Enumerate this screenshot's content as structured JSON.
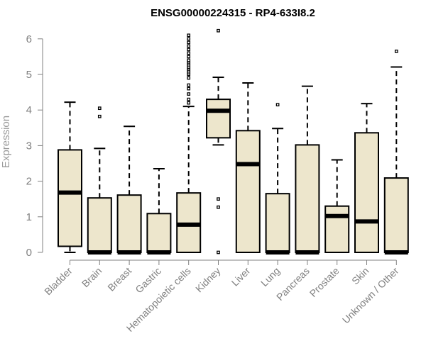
{
  "chart_data": {
    "type": "boxplot",
    "title": "ENSG00000224315 - RP4-633I8.2",
    "xlabel": "",
    "ylabel": "Expression",
    "ylim": [
      0,
      6
    ],
    "yticks": [
      0,
      1,
      2,
      3,
      4,
      5,
      6
    ],
    "grid": false,
    "colors": {
      "box_fill": "#ede6cc",
      "stroke": "#000000",
      "axis": "#808080",
      "label": "#808080"
    },
    "categories": [
      "Bladder",
      "Brain",
      "Breast",
      "Gastric",
      "Hematopoietic cells",
      "Kidney",
      "Liver",
      "Lung",
      "Pancreas",
      "Prostate",
      "Skin",
      "Unknown / Other"
    ],
    "boxes": [
      {
        "name": "Bladder",
        "whisker_low": 0.0,
        "q1": 0.17,
        "median": 1.68,
        "q3": 2.88,
        "whisker_high": 4.22,
        "outliers": []
      },
      {
        "name": "Brain",
        "whisker_low": 0.0,
        "q1": 0.0,
        "median": 0.0,
        "q3": 1.53,
        "whisker_high": 2.92,
        "outliers": [
          3.82,
          4.05
        ]
      },
      {
        "name": "Breast",
        "whisker_low": 0.0,
        "q1": 0.0,
        "median": 0.0,
        "q3": 1.61,
        "whisker_high": 3.54,
        "outliers": []
      },
      {
        "name": "Gastric",
        "whisker_low": 0.0,
        "q1": 0.0,
        "median": 0.0,
        "q3": 1.09,
        "whisker_high": 2.35,
        "outliers": []
      },
      {
        "name": "Hematopoietic cells",
        "whisker_low": 0.0,
        "q1": 0.0,
        "median": 0.78,
        "q3": 1.67,
        "whisker_high": 4.1,
        "outliers": [
          4.2,
          4.3,
          4.45,
          4.6,
          4.7,
          4.9,
          5.0,
          5.05,
          5.1,
          5.15,
          5.2,
          5.25,
          5.3,
          5.35,
          5.4,
          5.5,
          5.6,
          5.7,
          5.8,
          5.9,
          6.0,
          6.1
        ]
      },
      {
        "name": "Kidney",
        "whisker_low": 3.02,
        "q1": 3.22,
        "median": 3.98,
        "q3": 4.3,
        "whisker_high": 4.92,
        "outliers": [
          0.0,
          1.27,
          1.5,
          6.23
        ]
      },
      {
        "name": "Liver",
        "whisker_low": 0.0,
        "q1": 0.0,
        "median": 2.48,
        "q3": 3.42,
        "whisker_high": 4.76,
        "outliers": []
      },
      {
        "name": "Lung",
        "whisker_low": 0.0,
        "q1": 0.0,
        "median": 0.0,
        "q3": 1.65,
        "whisker_high": 3.48,
        "outliers": [
          4.15
        ]
      },
      {
        "name": "Pancreas",
        "whisker_low": 0.0,
        "q1": 0.0,
        "median": 0.0,
        "q3": 3.02,
        "whisker_high": 4.67,
        "outliers": []
      },
      {
        "name": "Prostate",
        "whisker_low": 0.0,
        "q1": 0.0,
        "median": 1.02,
        "q3": 1.3,
        "whisker_high": 2.6,
        "outliers": []
      },
      {
        "name": "Skin",
        "whisker_low": 0.0,
        "q1": 0.0,
        "median": 0.87,
        "q3": 3.36,
        "whisker_high": 4.18,
        "outliers": []
      },
      {
        "name": "Unknown / Other",
        "whisker_low": 0.0,
        "q1": 0.0,
        "median": 0.0,
        "q3": 2.09,
        "whisker_high": 5.21,
        "outliers": [
          5.65
        ]
      }
    ]
  }
}
